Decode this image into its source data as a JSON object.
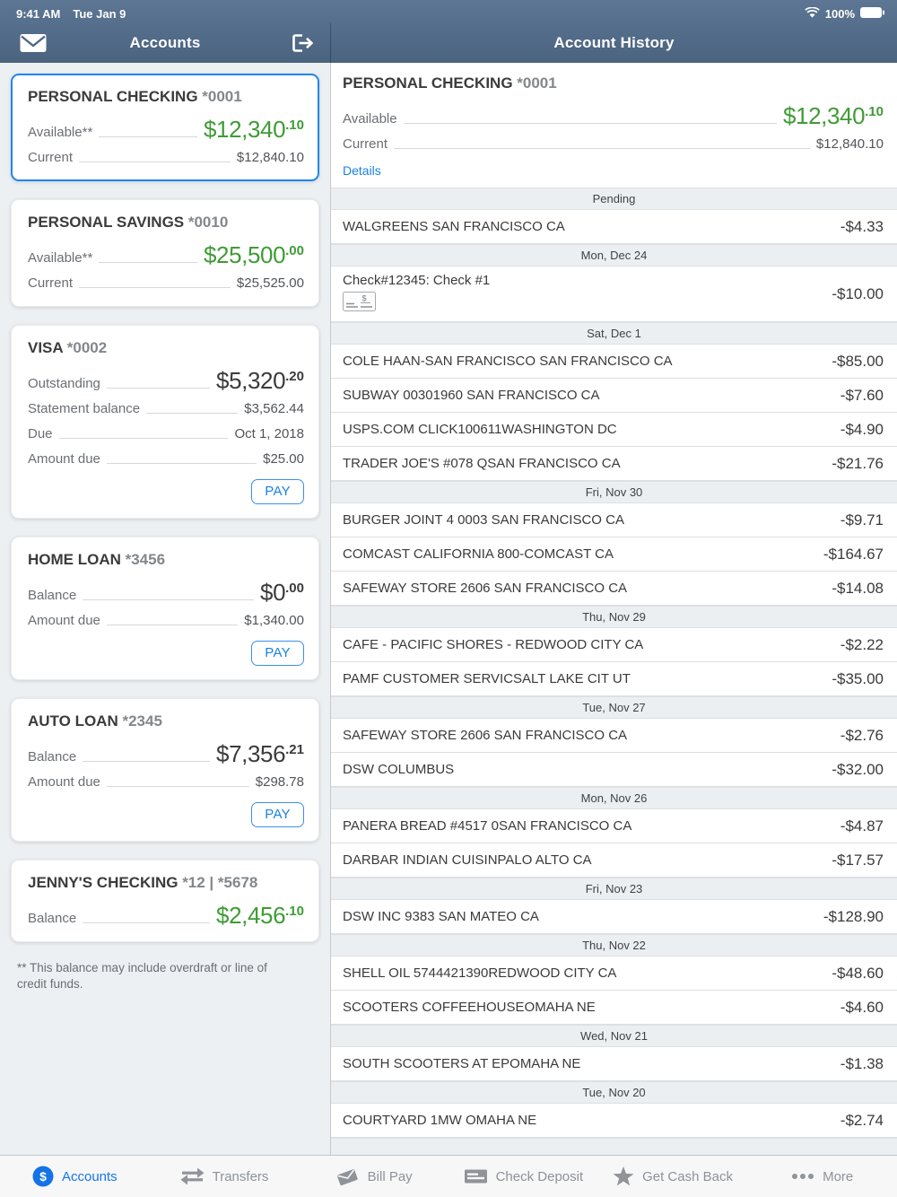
{
  "status_bar": {
    "time": "9:41 AM",
    "date": "Tue Jan 9",
    "battery": "100%",
    "icons": [
      "wifi-icon",
      "battery-icon"
    ]
  },
  "nav": {
    "left_title": "Accounts",
    "right_title": "Account History",
    "left_icons": [
      "mail-icon",
      "logout-icon"
    ]
  },
  "colors": {
    "header_background": "#4e6785",
    "accent_blue": "#1a82e2",
    "selected_card_border": "#1e87f0",
    "positive_green": "#3f9b35",
    "panel_background": "#edf0f3"
  },
  "accounts_panel": {
    "pay_label": "PAY",
    "footnote": "** This balance may include overdraft or line of credit funds.",
    "cards": [
      {
        "name": "PERSONAL CHECKING",
        "number": "*0001",
        "selected": true,
        "pay": false,
        "rows": [
          {
            "label": "Available**",
            "main": "$12,340",
            "cents": ".10",
            "tone": "green"
          },
          {
            "label": "Current",
            "value": "$12,840.10"
          }
        ]
      },
      {
        "name": "PERSONAL SAVINGS",
        "number": "*0010",
        "selected": false,
        "pay": false,
        "rows": [
          {
            "label": "Available**",
            "main": "$25,500",
            "cents": ".00",
            "tone": "green"
          },
          {
            "label": "Current",
            "value": "$25,525.00"
          }
        ]
      },
      {
        "name": "VISA",
        "number": "*0002",
        "selected": false,
        "pay": true,
        "rows": [
          {
            "label": "Outstanding",
            "main": "$5,320",
            "cents": ".20",
            "tone": "dark"
          },
          {
            "label": "Statement balance",
            "value": "$3,562.44"
          },
          {
            "label": "Due",
            "value": "Oct 1, 2018"
          },
          {
            "label": "Amount due",
            "value": "$25.00"
          }
        ]
      },
      {
        "name": "HOME LOAN",
        "number": "*3456",
        "selected": false,
        "pay": true,
        "rows": [
          {
            "label": "Balance",
            "main": "$0",
            "cents": ".00",
            "tone": "dark"
          },
          {
            "label": "Amount due",
            "value": "$1,340.00"
          }
        ]
      },
      {
        "name": "AUTO LOAN",
        "number": "*2345",
        "selected": false,
        "pay": true,
        "rows": [
          {
            "label": "Balance",
            "main": "$7,356",
            "cents": ".21",
            "tone": "dark"
          },
          {
            "label": "Amount due",
            "value": "$298.78"
          }
        ]
      },
      {
        "name": "JENNY'S CHECKING",
        "number": "*12 | *5678",
        "selected": false,
        "pay": false,
        "rows": [
          {
            "label": "Balance",
            "main": "$2,456",
            "cents": ".10",
            "tone": "green"
          }
        ]
      }
    ]
  },
  "history_panel": {
    "title": "PERSONAL CHECKING",
    "number": "*0001",
    "available_label": "Available",
    "available": {
      "main": "$12,340",
      "cents": ".10"
    },
    "current_label": "Current",
    "current_value": "$12,840.10",
    "details_label": "Details",
    "sections": [
      {
        "header": "Pending",
        "transactions": [
          {
            "desc": "WALGREENS SAN FRANCISCO CA",
            "amount": "-$4.33"
          }
        ]
      },
      {
        "header": "Mon, Dec 24",
        "transactions": [
          {
            "desc": "Check#12345: Check #1",
            "amount": "-$10.00",
            "check_image": true
          }
        ]
      },
      {
        "header": "Sat, Dec 1",
        "transactions": [
          {
            "desc": "COLE HAAN-SAN FRANCISCO SAN FRANCISCO CA",
            "amount": "-$85.00"
          },
          {
            "desc": "SUBWAY 00301960 SAN FRANCISCO CA",
            "amount": "-$7.60"
          },
          {
            "desc": "USPS.COM CLICK100611WASHINGTON DC",
            "amount": "-$4.90"
          },
          {
            "desc": "TRADER JOE'S #078 QSAN FRANCISCO CA",
            "amount": "-$21.76"
          }
        ]
      },
      {
        "header": "Fri, Nov 30",
        "transactions": [
          {
            "desc": "BURGER JOINT 4 0003 SAN FRANCISCO CA",
            "amount": "-$9.71"
          },
          {
            "desc": "COMCAST CALIFORNIA 800-COMCAST CA",
            "amount": "-$164.67"
          },
          {
            "desc": "SAFEWAY STORE 2606 SAN FRANCISCO CA",
            "amount": "-$14.08"
          }
        ]
      },
      {
        "header": "Thu, Nov 29",
        "transactions": [
          {
            "desc": "CAFE - PACIFIC SHORES - REDWOOD CITY CA",
            "amount": "-$2.22"
          },
          {
            "desc": "PAMF CUSTOMER SERVICSALT LAKE CIT UT",
            "amount": "-$35.00"
          }
        ]
      },
      {
        "header": "Tue, Nov 27",
        "transactions": [
          {
            "desc": "SAFEWAY STORE 2606 SAN FRANCISCO CA",
            "amount": "-$2.76"
          },
          {
            "desc": "DSW COLUMBUS",
            "amount": "-$32.00"
          }
        ]
      },
      {
        "header": "Mon, Nov 26",
        "transactions": [
          {
            "desc": "PANERA BREAD #4517 0SAN FRANCISCO CA",
            "amount": "-$4.87"
          },
          {
            "desc": "DARBAR INDIAN CUISINPALO ALTO CA",
            "amount": "-$17.57"
          }
        ]
      },
      {
        "header": "Fri, Nov 23",
        "transactions": [
          {
            "desc": "DSW INC 9383 SAN MATEO CA",
            "amount": "-$128.90"
          }
        ]
      },
      {
        "header": "Thu, Nov 22",
        "transactions": [
          {
            "desc": "SHELL OIL 5744421390REDWOOD CITY CA",
            "amount": "-$48.60"
          },
          {
            "desc": "SCOOTERS COFFEEHOUSEOMAHA NE",
            "amount": "-$4.60"
          }
        ]
      },
      {
        "header": "Wed, Nov 21",
        "transactions": [
          {
            "desc": "SOUTH SCOOTERS AT EPOMAHA NE",
            "amount": "-$1.38"
          }
        ]
      },
      {
        "header": "Tue, Nov 20",
        "transactions": [
          {
            "desc": "COURTYARD 1MW OMAHA NE",
            "amount": "-$2.74"
          }
        ]
      },
      {
        "header": "",
        "transactions": []
      }
    ]
  },
  "tab_bar": {
    "items": [
      {
        "label": "Accounts",
        "icon": "dollar-circle",
        "active": true
      },
      {
        "label": "Transfers",
        "icon": "transfer-arrows",
        "active": false
      },
      {
        "label": "Bill Pay",
        "icon": "bill-pay",
        "active": false
      },
      {
        "label": "Check Deposit",
        "icon": "check-deposit",
        "active": false
      },
      {
        "label": "Get Cash Back",
        "icon": "star",
        "active": false
      },
      {
        "label": "More",
        "icon": "ellipsis",
        "active": false
      }
    ]
  }
}
